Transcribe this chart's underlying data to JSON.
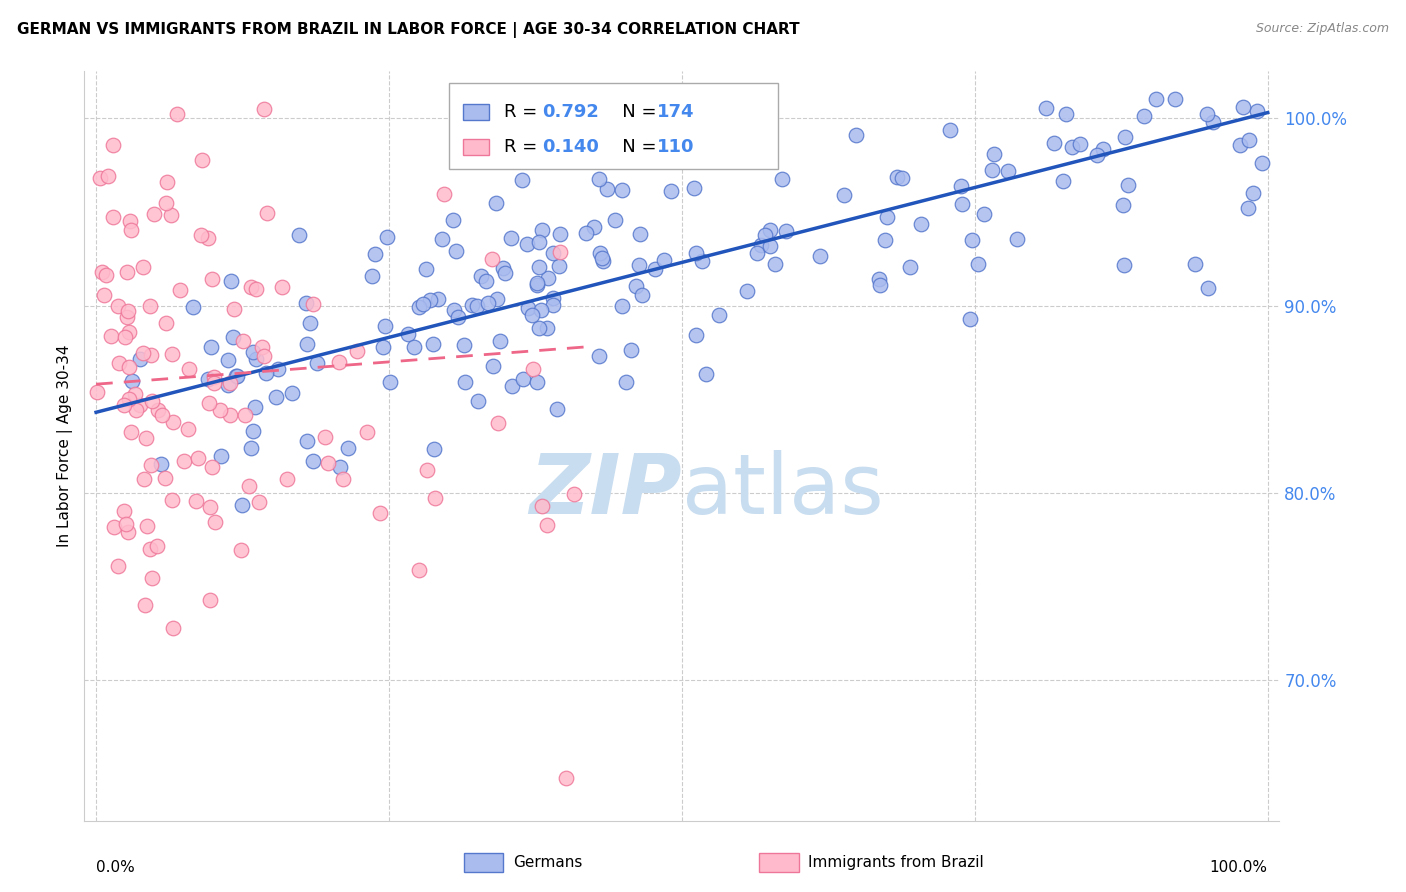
{
  "title": "GERMAN VS IMMIGRANTS FROM BRAZIL IN LABOR FORCE | AGE 30-34 CORRELATION CHART",
  "source": "Source: ZipAtlas.com",
  "ylabel": "In Labor Force | Age 30-34",
  "ytick_labels": [
    "70.0%",
    "80.0%",
    "90.0%",
    "100.0%"
  ],
  "ytick_values": [
    0.7,
    0.8,
    0.9,
    1.0
  ],
  "xlim": [
    -0.01,
    1.01
  ],
  "ylim": [
    0.625,
    1.025
  ],
  "blue_R": 0.792,
  "blue_N": 174,
  "pink_R": 0.14,
  "pink_N": 110,
  "blue_fill_color": "#AABBEE",
  "blue_edge_color": "#5577CC",
  "pink_fill_color": "#FFBBCC",
  "pink_edge_color": "#EE7799",
  "blue_line_color": "#2255BB",
  "pink_line_color": "#EE6688",
  "tick_color": "#4488EE",
  "watermark_color": "#C8DDEF",
  "legend_label_blue": "Germans",
  "legend_label_pink": "Immigrants from Brazil",
  "blue_line_x0": 0.0,
  "blue_line_y0": 0.843,
  "blue_line_x1": 1.0,
  "blue_line_y1": 1.003,
  "pink_line_x0": 0.0,
  "pink_line_y0": 0.858,
  "pink_line_x1": 0.42,
  "pink_line_y1": 0.878
}
